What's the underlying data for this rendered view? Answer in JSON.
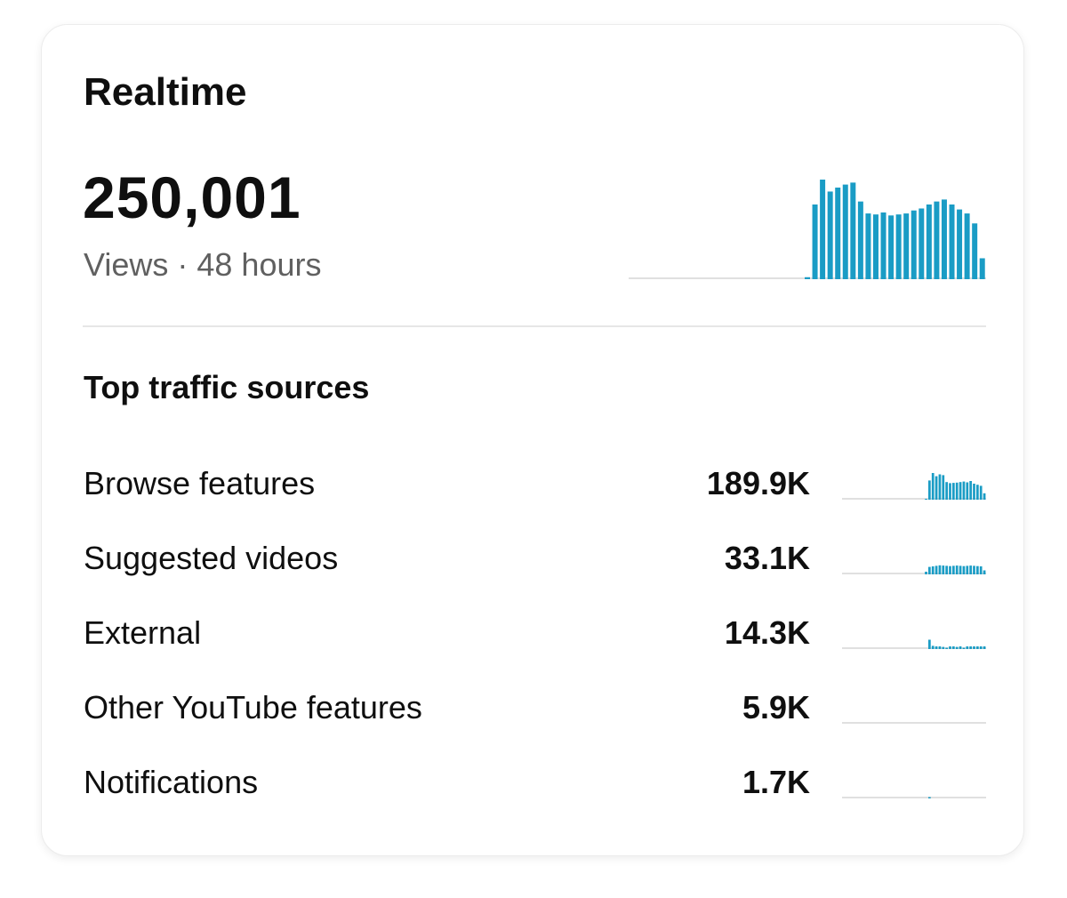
{
  "card": {
    "title": "Realtime",
    "views_value": "250,001",
    "views_caption": "Views · 48 hours"
  },
  "traffic": {
    "section_title": "Top traffic sources",
    "sources": [
      {
        "label": "Browse features",
        "value": "189.9K"
      },
      {
        "label": "Suggested videos",
        "value": "33.1K"
      },
      {
        "label": "External",
        "value": "14.3K"
      },
      {
        "label": "Other YouTube features",
        "value": "5.9K"
      },
      {
        "label": "Notifications",
        "value": "1.7K"
      }
    ]
  },
  "colors": {
    "bar": "#1a9cc5",
    "baseline": "#e0e0e0",
    "text_primary": "#0f0f0f",
    "text_secondary": "#606060"
  },
  "chart_data": [
    {
      "type": "bar",
      "series": [
        {
          "values": [
            0,
            0,
            0,
            0,
            0,
            0,
            0,
            0,
            0,
            0,
            0,
            0,
            0,
            0,
            0,
            0,
            0,
            0,
            0,
            0,
            0,
            0,
            0,
            0.02,
            0.75,
            1.0,
            0.88,
            0.92,
            0.95,
            0.97,
            0.78,
            0.66,
            0.65,
            0.67,
            0.64,
            0.65,
            0.66,
            0.69,
            0.71,
            0.75,
            0.78,
            0.8,
            0.75,
            0.7,
            0.66,
            0.56,
            0.21
          ]
        }
      ]
    },
    {
      "type": "bar",
      "series": [
        {
          "values": [
            0,
            0,
            0,
            0,
            0,
            0,
            0,
            0,
            0,
            0,
            0,
            0,
            0,
            0,
            0,
            0,
            0,
            0,
            0,
            0,
            0,
            0,
            0,
            0,
            0.02,
            0.72,
            1.0,
            0.88,
            0.95,
            0.92,
            0.66,
            0.62,
            0.63,
            0.64,
            0.66,
            0.68,
            0.65,
            0.7,
            0.6,
            0.56,
            0.52,
            0.24
          ]
        }
      ]
    },
    {
      "type": "bar",
      "series": [
        {
          "values": [
            0,
            0,
            0,
            0,
            0,
            0,
            0,
            0,
            0,
            0,
            0,
            0,
            0,
            0,
            0,
            0,
            0,
            0,
            0,
            0,
            0,
            0,
            0,
            0,
            0.1,
            0.28,
            0.3,
            0.32,
            0.34,
            0.33,
            0.32,
            0.31,
            0.32,
            0.33,
            0.32,
            0.31,
            0.32,
            0.33,
            0.32,
            0.31,
            0.3,
            0.15
          ]
        }
      ]
    },
    {
      "type": "bar",
      "series": [
        {
          "values": [
            0,
            0,
            0,
            0,
            0,
            0,
            0,
            0,
            0,
            0,
            0,
            0,
            0,
            0,
            0,
            0,
            0,
            0,
            0,
            0,
            0,
            0,
            0,
            0,
            0,
            0.35,
            0.12,
            0.1,
            0.1,
            0.08,
            0.05,
            0.1,
            0.1,
            0.08,
            0.1,
            0.05,
            0.1,
            0.1,
            0.1,
            0.1,
            0.1,
            0.1
          ]
        }
      ]
    },
    {
      "type": "bar",
      "series": [
        {
          "values": [
            0,
            0,
            0,
            0,
            0,
            0,
            0,
            0,
            0,
            0,
            0,
            0,
            0,
            0,
            0,
            0,
            0,
            0,
            0,
            0,
            0,
            0,
            0,
            0,
            0,
            0,
            0,
            0,
            0,
            0,
            0,
            0,
            0,
            0,
            0,
            0,
            0,
            0,
            0,
            0,
            0,
            0
          ]
        }
      ]
    },
    {
      "type": "bar",
      "series": [
        {
          "values": [
            0,
            0,
            0,
            0,
            0,
            0,
            0,
            0,
            0,
            0,
            0,
            0,
            0,
            0,
            0,
            0,
            0,
            0,
            0,
            0,
            0,
            0,
            0,
            0,
            0,
            0.05,
            0,
            0,
            0,
            0,
            0,
            0,
            0,
            0,
            0,
            0,
            0,
            0,
            0,
            0,
            0,
            0
          ]
        }
      ]
    }
  ]
}
